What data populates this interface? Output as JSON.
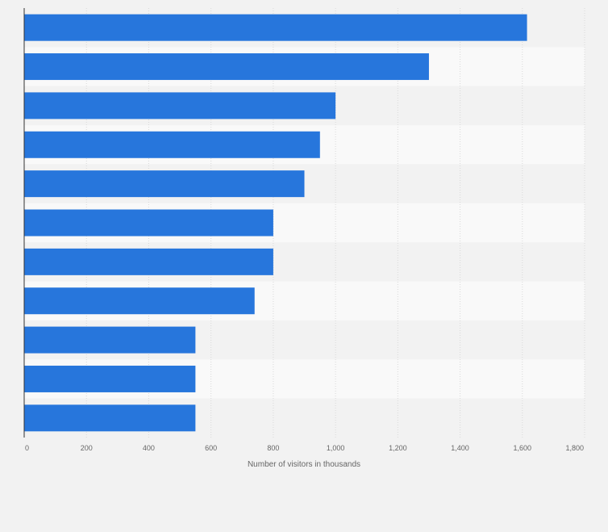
{
  "chart_data": {
    "type": "bar",
    "orientation": "horizontal",
    "title": "",
    "xlabel": "Number of visitors in thousands",
    "ylabel": "",
    "xlim": [
      0,
      1800
    ],
    "x_ticks": [
      0,
      200,
      400,
      600,
      800,
      1000,
      1200,
      1400,
      1600,
      1800
    ],
    "x_tick_labels": [
      "0",
      "200",
      "400",
      "600",
      "800",
      "1,000",
      "1,200",
      "1,400",
      "1,600",
      "1,800"
    ],
    "categories": [
      "",
      "",
      "",
      "",
      "",
      "",
      "",
      "",
      "",
      "",
      ""
    ],
    "values": [
      1615,
      1300,
      1000,
      950,
      900,
      800,
      800,
      740,
      550,
      550,
      550
    ],
    "grid": true,
    "legend": "none",
    "colors": {
      "bar": "#2776dc",
      "band_light": "#f9f9f9",
      "band_dark": "#f2f2f2",
      "grid": "#d9d9d9",
      "axis": "#333333"
    }
  }
}
